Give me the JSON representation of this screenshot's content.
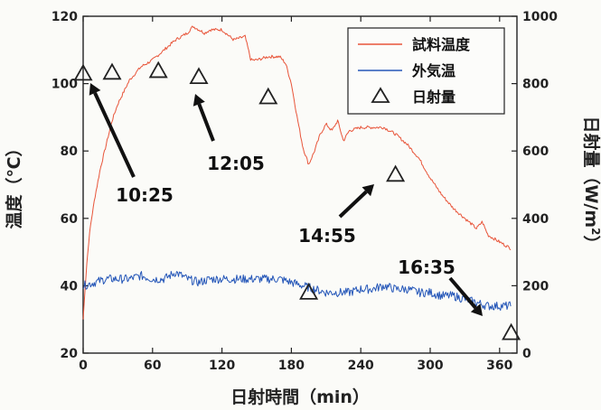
{
  "chart_data": {
    "type": "line",
    "xlabel": "日射時間（min）",
    "ylabel_left": "温度（℃）",
    "ylabel_right": "日射量（W/m²）",
    "ylabel_right_main": "日射量（W/m",
    "ylabel_right_sup": "2",
    "ylabel_right_tail": "）",
    "xlim": [
      0,
      375
    ],
    "ylim_left": [
      20,
      120
    ],
    "ylim_right": [
      0,
      1000
    ],
    "x_ticks": [
      "0",
      "60",
      "120",
      "180",
      "240",
      "300",
      "360"
    ],
    "y_left_ticks": [
      "20",
      "40",
      "60",
      "80",
      "100",
      "120"
    ],
    "y_right_ticks": [
      "0",
      "200",
      "400",
      "600",
      "800",
      "1000"
    ],
    "legend_position": "top-right",
    "series": [
      {
        "name": "試料温度",
        "color": "#e8553a",
        "axis": "left",
        "x": [
          0,
          3,
          6,
          10,
          15,
          20,
          25,
          30,
          40,
          50,
          60,
          70,
          80,
          90,
          95,
          100,
          105,
          110,
          120,
          130,
          140,
          145,
          150,
          160,
          170,
          175,
          180,
          185,
          190,
          195,
          200,
          205,
          210,
          215,
          220,
          225,
          230,
          240,
          250,
          260,
          270,
          280,
          290,
          300,
          310,
          320,
          330,
          340,
          345,
          350,
          360,
          370
        ],
        "values": [
          30,
          46,
          57,
          66,
          75,
          82,
          89,
          94,
          101,
          105,
          107,
          110,
          113,
          115,
          117,
          116,
          115,
          116,
          116,
          113,
          114,
          107,
          107,
          108,
          108,
          106,
          100,
          90,
          81,
          76,
          80,
          85,
          88,
          86,
          89,
          83,
          86,
          87,
          87,
          87,
          85,
          82,
          78,
          72,
          67,
          63,
          60,
          57,
          59,
          55,
          53,
          51
        ]
      },
      {
        "name": "外気温",
        "color": "#2456b8",
        "axis": "left",
        "x": [
          0,
          10,
          20,
          30,
          40,
          50,
          60,
          70,
          80,
          90,
          100,
          110,
          120,
          130,
          140,
          150,
          160,
          170,
          180,
          190,
          200,
          210,
          220,
          230,
          240,
          250,
          260,
          270,
          280,
          290,
          300,
          310,
          320,
          330,
          340,
          350,
          360,
          370
        ],
        "values": [
          40,
          41,
          42,
          42,
          42,
          43,
          42,
          42,
          44,
          42,
          41,
          42,
          42,
          42,
          42,
          42,
          42,
          42,
          41,
          40,
          39,
          38,
          38,
          38,
          39,
          39,
          40,
          39,
          39,
          38,
          38,
          37,
          37,
          36,
          35,
          34,
          34,
          34
        ]
      },
      {
        "name": "日射量",
        "color": "#222222",
        "axis": "right",
        "marker": "triangle",
        "x": [
          0,
          25,
          65,
          100,
          160,
          195,
          270,
          370
        ],
        "values": [
          830,
          833,
          838,
          820,
          760,
          180,
          530,
          60
        ]
      }
    ],
    "annotations": [
      {
        "text": "10:25",
        "x": 0,
        "value": 830
      },
      {
        "text": "12:05",
        "x": 100,
        "value": 820
      },
      {
        "text": "14:55",
        "x": 270,
        "value": 530
      },
      {
        "text": "16:35",
        "x": 370,
        "value": 60
      }
    ]
  }
}
